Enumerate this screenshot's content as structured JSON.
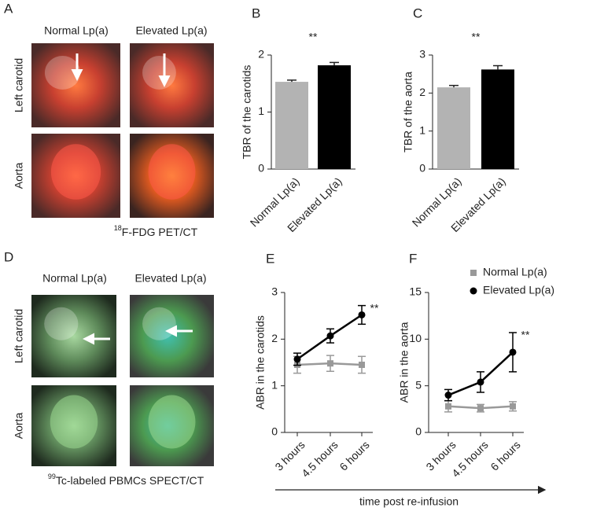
{
  "image_panels": [
    {
      "label": "A",
      "columns": [
        "Normal Lp(a)",
        "Elevated Lp(a)"
      ],
      "rows": [
        "Left carotid",
        "Aorta"
      ],
      "caption_superscript": "18",
      "caption": "F-FDG PET/CT"
    },
    {
      "label": "D",
      "columns": [
        "Normal Lp(a)",
        "Elevated Lp(a)"
      ],
      "rows": [
        "Left carotid",
        "Aorta"
      ],
      "caption_superscript": "99",
      "caption": "Tc-labeled PBMCs SPECT/CT"
    }
  ],
  "x_axis_note": "time post re-infusion",
  "chart_data": [
    {
      "type": "bar",
      "label": "B",
      "ylabel": "TBR of the carotids",
      "annotation": "**",
      "categories": [
        "Normal Lp(a)",
        "Elevated Lp(a)"
      ],
      "values": [
        1.53,
        1.82
      ],
      "errors": [
        0.03,
        0.05
      ],
      "colors": [
        "#b3b3b3",
        "#000000"
      ],
      "ylim": [
        0,
        2
      ],
      "yticks": [
        0,
        1,
        2
      ]
    },
    {
      "type": "bar",
      "label": "C",
      "ylabel": "TBR of the aorta",
      "annotation": "**",
      "categories": [
        "Normal Lp(a)",
        "Elevated Lp(a)"
      ],
      "values": [
        2.15,
        2.62
      ],
      "errors": [
        0.05,
        0.1
      ],
      "colors": [
        "#b3b3b3",
        "#000000"
      ],
      "ylim": [
        0,
        3
      ],
      "yticks": [
        0,
        1,
        2,
        3
      ]
    },
    {
      "type": "line",
      "label": "E",
      "ylabel": "ABR in the carotids",
      "annotation": "**",
      "categories": [
        "3 hours",
        "4.5 hours",
        "6 hours"
      ],
      "ylim": [
        0,
        3
      ],
      "yticks": [
        0,
        1,
        2,
        3
      ],
      "series": [
        {
          "color": "#999999",
          "marker": "square",
          "values": [
            1.45,
            1.48,
            1.45
          ],
          "errors": [
            0.18,
            0.17,
            0.18
          ]
        },
        {
          "color": "#000000",
          "marker": "circle",
          "values": [
            1.57,
            2.07,
            2.52
          ],
          "errors": [
            0.13,
            0.15,
            0.2
          ]
        }
      ]
    },
    {
      "type": "line",
      "label": "F",
      "ylabel": "ABR in the aorta",
      "annotation": "**",
      "categories": [
        "3 hours",
        "4.5 hours",
        "6 hours"
      ],
      "ylim": [
        0,
        15
      ],
      "yticks": [
        0,
        5,
        10,
        15
      ],
      "series": [
        {
          "name": "Normal Lp(a)",
          "color": "#999999",
          "marker": "square",
          "values": [
            2.8,
            2.6,
            2.8
          ],
          "errors": [
            0.6,
            0.4,
            0.5
          ]
        },
        {
          "name": "Elevated Lp(a)",
          "color": "#000000",
          "marker": "circle",
          "values": [
            4.0,
            5.4,
            8.6
          ],
          "errors": [
            0.6,
            1.1,
            2.1
          ]
        }
      ]
    }
  ]
}
